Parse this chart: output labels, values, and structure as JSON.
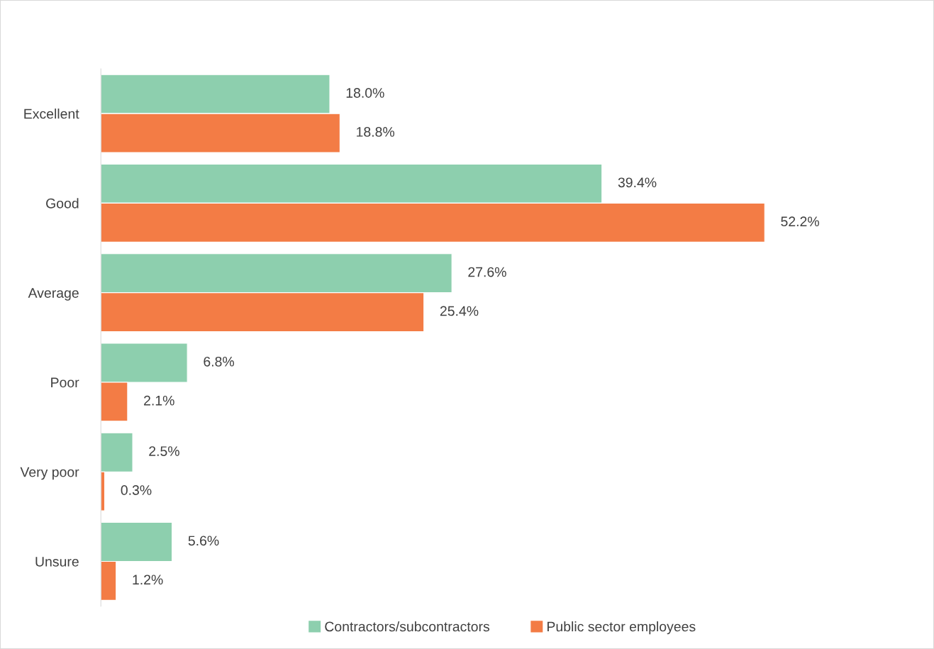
{
  "chart_data": {
    "type": "bar",
    "orientation": "horizontal",
    "categories": [
      "Excellent",
      "Good",
      "Average",
      "Poor",
      "Very poor",
      "Unsure"
    ],
    "series": [
      {
        "name": "Contractors/subcontractors",
        "color": "#8dcfae",
        "values": [
          18.0,
          39.4,
          27.6,
          6.8,
          2.5,
          5.6
        ],
        "value_labels": [
          "18.0%",
          "39.4%",
          "27.6%",
          "6.8%",
          "2.5%",
          "5.6%"
        ]
      },
      {
        "name": "Public sector employees",
        "color": "#f37c45",
        "values": [
          18.8,
          52.2,
          25.4,
          2.1,
          0.3,
          1.2
        ],
        "value_labels": [
          "18.8%",
          "52.2%",
          "25.4%",
          "2.1%",
          "0.3%",
          "1.2%"
        ]
      }
    ],
    "legend": "bottom",
    "grid": false
  }
}
